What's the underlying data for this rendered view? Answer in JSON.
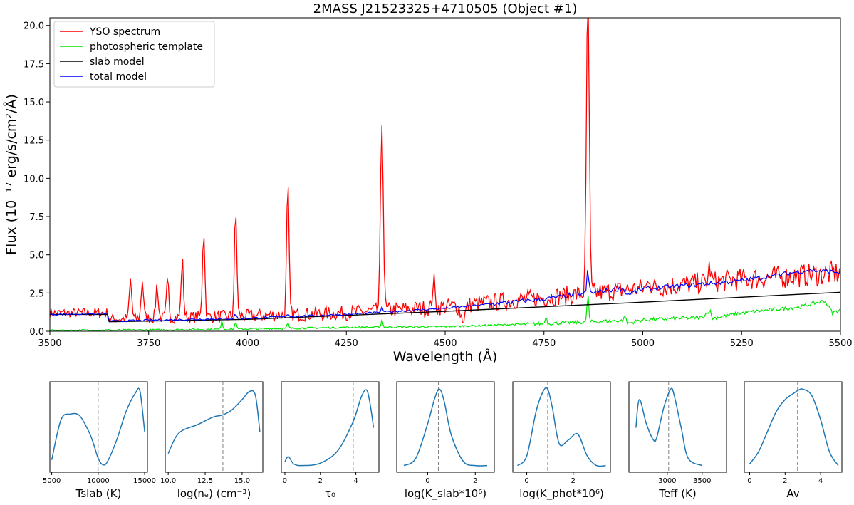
{
  "chart_data": [
    {
      "type": "line",
      "title": "2MASS J21523325+4710505 (Object #1)",
      "xlabel": "Wavelength (Å)",
      "ylabel": "Flux (10⁻¹⁷ erg/s/cm²/Å)",
      "xlim": [
        3500,
        5500
      ],
      "ylim": [
        0,
        20.5
      ],
      "xticks": [
        3500,
        3750,
        4000,
        4250,
        4500,
        4750,
        5000,
        5250,
        5500
      ],
      "yticks": [
        0.0,
        2.5,
        5.0,
        7.5,
        10.0,
        12.5,
        15.0,
        17.5,
        20.0
      ],
      "legend_position": "top-left",
      "series": [
        {
          "name": "YSO spectrum",
          "color": "#ff0000",
          "baseline": [
            [
              3500,
              1.2
            ],
            [
              3646,
              1.2
            ],
            [
              3650,
              0.8
            ],
            [
              4000,
              1.0
            ],
            [
              4250,
              1.2
            ],
            [
              4500,
              1.6
            ],
            [
              4750,
              2.2
            ],
            [
              5000,
              2.8
            ],
            [
              5250,
              3.4
            ],
            [
              5500,
              3.8
            ]
          ],
          "noise": 0.5,
          "lines": [
            [
              3704,
              2.5,
              3
            ],
            [
              3734,
              2.5,
              3
            ],
            [
              3771,
              2.2,
              3
            ],
            [
              3798,
              2.4,
              3
            ],
            [
              3835,
              3.7,
              3
            ],
            [
              3889,
              5.7,
              3
            ],
            [
              3970,
              6.8,
              3
            ],
            [
              4102,
              8.4,
              3
            ],
            [
              4340,
              12.3,
              3.5
            ],
            [
              4471,
              1.8,
              3
            ],
            [
              4861,
              19.6,
              3.5
            ],
            [
              5016,
              0.8,
              3
            ],
            [
              5169,
              1.0,
              3
            ]
          ],
          "dips": [
            [
              4545,
              0.9,
              6
            ]
          ]
        },
        {
          "name": "photospheric template",
          "color": "#00e600",
          "points": [
            [
              3500,
              0.05
            ],
            [
              3750,
              0.08
            ],
            [
              4000,
              0.15
            ],
            [
              4250,
              0.25
            ],
            [
              4500,
              0.3
            ],
            [
              4750,
              0.5
            ],
            [
              4950,
              0.7
            ],
            [
              4955,
              1.05
            ],
            [
              4960,
              0.5
            ],
            [
              5000,
              0.75
            ],
            [
              5150,
              0.9
            ],
            [
              5170,
              1.4
            ],
            [
              5175,
              0.85
            ],
            [
              5250,
              1.2
            ],
            [
              5400,
              1.6
            ],
            [
              5460,
              2.0
            ],
            [
              5480,
              1.2
            ],
            [
              5500,
              1.4
            ]
          ],
          "spikes": [
            [
              3935,
              0.6
            ],
            [
              3970,
              0.5
            ],
            [
              4102,
              0.35
            ],
            [
              4340,
              0.5
            ],
            [
              4755,
              0.5
            ],
            [
              4861,
              1.9
            ]
          ]
        },
        {
          "name": "slab model",
          "color": "#000000",
          "points": [
            [
              3500,
              1.1
            ],
            [
              3646,
              1.1
            ],
            [
              3650,
              0.62
            ],
            [
              4000,
              0.78
            ],
            [
              4500,
              1.3
            ],
            [
              5000,
              1.9
            ],
            [
              5500,
              2.55
            ]
          ]
        },
        {
          "name": "total model",
          "color": "#0000ff",
          "points": [
            [
              3500,
              1.1
            ],
            [
              3646,
              1.15
            ],
            [
              3650,
              0.65
            ],
            [
              3750,
              0.72
            ],
            [
              4000,
              0.85
            ],
            [
              4250,
              1.1
            ],
            [
              4500,
              1.5
            ],
            [
              4750,
              2.1
            ],
            [
              4950,
              2.8
            ],
            [
              4960,
              2.4
            ],
            [
              5000,
              2.75
            ],
            [
              5250,
              3.3
            ],
            [
              5420,
              4.0
            ],
            [
              5500,
              3.85
            ]
          ],
          "spikes": [
            [
              4861,
              1.5
            ],
            [
              3970,
              0.3
            ],
            [
              4102,
              0.2
            ],
            [
              4340,
              0.3
            ]
          ]
        }
      ]
    },
    {
      "type": "line",
      "xlabel": "Tslab (K)",
      "xlim": [
        4800,
        15300
      ],
      "xticks": [
        5000,
        10000,
        15000
      ],
      "marker": 10000,
      "color": "#1f77b4",
      "x": [
        5000,
        6000,
        7000,
        8000,
        9000,
        9500,
        10000,
        10500,
        11000,
        12000,
        13000,
        14000,
        14500,
        15000
      ],
      "y": [
        0.1,
        0.6,
        0.67,
        0.65,
        0.45,
        0.3,
        0.12,
        0.04,
        0.08,
        0.35,
        0.7,
        0.93,
        0.95,
        0.45
      ]
    },
    {
      "type": "line",
      "xlabel": "log(nₑ) (cm⁻³)",
      "xlim": [
        9.8,
        16.4
      ],
      "xticks": [
        10.0,
        12.5,
        15.0
      ],
      "marker": 13.7,
      "color": "#1f77b4",
      "x": [
        10,
        10.5,
        11,
        12,
        13,
        13.7,
        14.3,
        15,
        15.5,
        15.9,
        16.2
      ],
      "y": [
        0.18,
        0.38,
        0.47,
        0.54,
        0.63,
        0.66,
        0.72,
        0.85,
        0.95,
        0.9,
        0.45
      ]
    },
    {
      "type": "line",
      "xlabel": "τ₀",
      "xlim": [
        -0.2,
        5.3
      ],
      "xticks": [
        0,
        2,
        4
      ],
      "marker": 3.85,
      "color": "#1f77b4",
      "x": [
        0,
        0.2,
        0.5,
        1,
        2,
        3,
        3.85,
        4.3,
        4.6,
        4.8,
        5.0
      ],
      "y": [
        0.08,
        0.14,
        0.05,
        0.03,
        0.06,
        0.22,
        0.58,
        0.88,
        0.97,
        0.8,
        0.5
      ]
    },
    {
      "type": "line",
      "xlabel": "log(K_slab*10⁶)",
      "xlim": [
        -1.3,
        2.8
      ],
      "xticks": [
        0,
        2
      ],
      "marker": 0.45,
      "color": "#1f77b4",
      "x": [
        -1,
        -0.5,
        0,
        0.3,
        0.5,
        0.7,
        1,
        1.5,
        2,
        2.5
      ],
      "y": [
        0.03,
        0.12,
        0.55,
        0.87,
        0.98,
        0.82,
        0.4,
        0.08,
        0.03,
        0.03
      ]
    },
    {
      "type": "line",
      "xlabel": "log(K_phot*10⁶)",
      "xlim": [
        -0.6,
        3.6
      ],
      "xticks": [
        0,
        2
      ],
      "marker": 0.9,
      "color": "#1f77b4",
      "x": [
        -0.4,
        0,
        0.4,
        0.7,
        0.9,
        1.1,
        1.4,
        1.8,
        2.2,
        2.6,
        3,
        3.4
      ],
      "y": [
        0.03,
        0.15,
        0.7,
        0.95,
        0.98,
        0.75,
        0.3,
        0.35,
        0.42,
        0.15,
        0.03,
        0.03
      ]
    },
    {
      "type": "line",
      "xlabel": "Teff (K)",
      "xlim": [
        2450,
        3850
      ],
      "xticks": [
        3000,
        3500
      ],
      "marker": 3020,
      "color": "#1f77b4",
      "x": [
        2550,
        2600,
        2700,
        2800,
        2850,
        2950,
        3050,
        3100,
        3200,
        3300,
        3500
      ],
      "y": [
        0.5,
        0.85,
        0.55,
        0.35,
        0.38,
        0.75,
        0.98,
        0.9,
        0.5,
        0.12,
        0.03
      ]
    },
    {
      "type": "line",
      "xlabel": "Av",
      "xlim": [
        -0.3,
        5.2
      ],
      "xticks": [
        0,
        2,
        4
      ],
      "marker": 2.7,
      "color": "#1f77b4",
      "x": [
        0,
        0.5,
        1,
        1.5,
        2,
        2.5,
        2.7,
        3,
        3.5,
        4,
        4.5,
        5
      ],
      "y": [
        0.05,
        0.2,
        0.45,
        0.7,
        0.85,
        0.93,
        0.96,
        0.98,
        0.9,
        0.6,
        0.2,
        0.03
      ]
    }
  ]
}
